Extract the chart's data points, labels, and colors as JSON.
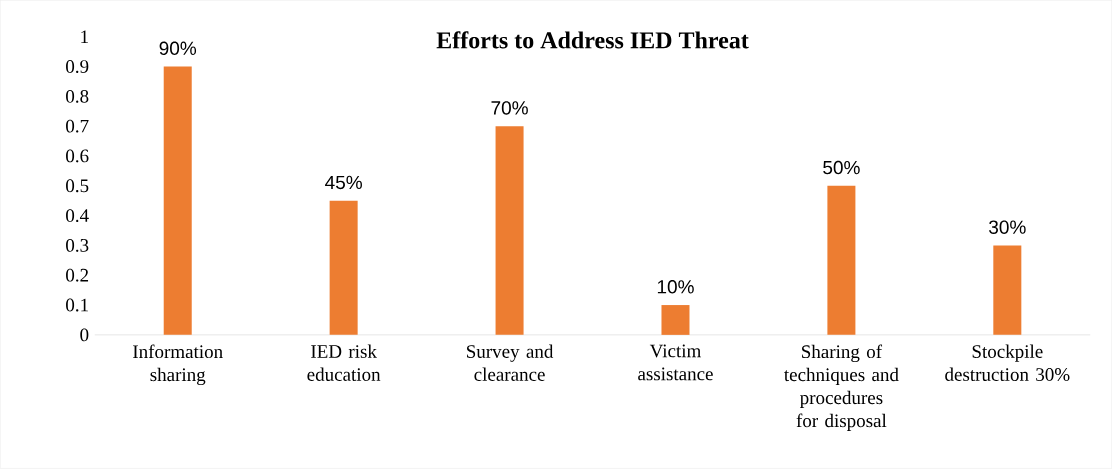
{
  "chart_data": {
    "type": "bar",
    "title": "Efforts to Address IED Threat",
    "categories": [
      "Information sharing",
      "IED risk education",
      "Survey and clearance",
      "Victim assistance",
      "Sharing of techniques and procedures for disposal",
      "Stockpile destruction 30%"
    ],
    "values": [
      0.9,
      0.45,
      0.7,
      0.1,
      0.5,
      0.3
    ],
    "value_labels": [
      "90%",
      "45%",
      "70%",
      "10%",
      "50%",
      "30%"
    ],
    "color": "#ed7d31",
    "ylim": [
      0,
      1
    ],
    "yticks": [
      0,
      0.1,
      0.2,
      0.3,
      0.4,
      0.5,
      0.6,
      0.7,
      0.8,
      0.9,
      1
    ],
    "grid": false
  }
}
